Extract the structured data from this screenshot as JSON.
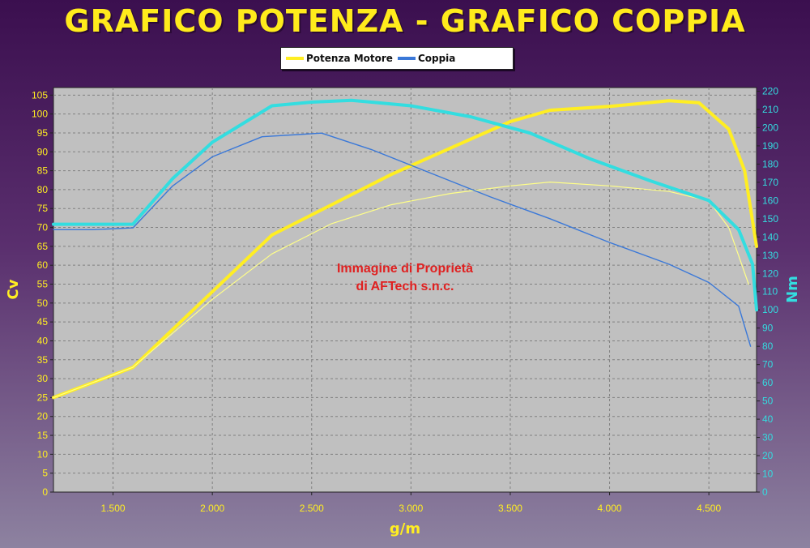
{
  "title": "GRAFICO POTENZA - GRAFICO COPPIA",
  "legend": {
    "items": [
      {
        "label": "Potenza Motore",
        "color": "#ffee22"
      },
      {
        "label": "Coppia",
        "color": "#3a78d8"
      }
    ]
  },
  "watermark": {
    "line1": "Immagine di Proprietà",
    "line2": "di AFTech s.n.c."
  },
  "colors": {
    "plot_bg": "#c0c0c0",
    "power": "#ffee22",
    "power_thin": "#ffff88",
    "torque_thick": "#33dde0",
    "torque_thin": "#3a78d8",
    "left_axis": "#ffee22",
    "right_axis": "#33dde0",
    "watermark": "#e02020"
  },
  "chart_data": {
    "type": "line",
    "xlabel": "g/m",
    "ylabel_left": "Cv",
    "ylabel_right": "Nm",
    "xlim": [
      1200,
      4740
    ],
    "ylim_left": [
      0,
      107
    ],
    "ylim_right": [
      0,
      222
    ],
    "x_ticks": [
      1500,
      2000,
      2500,
      3000,
      3500,
      4000,
      4500
    ],
    "x_tick_labels": [
      "1.500",
      "2.000",
      "2.500",
      "3.000",
      "3.500",
      "4.000",
      "4.500"
    ],
    "y_left_ticks": [
      0,
      5,
      10,
      15,
      20,
      25,
      30,
      35,
      40,
      45,
      50,
      55,
      60,
      65,
      70,
      75,
      80,
      85,
      90,
      95,
      100,
      105
    ],
    "y_right_ticks": [
      0,
      10,
      20,
      30,
      40,
      50,
      60,
      70,
      80,
      90,
      100,
      110,
      120,
      130,
      140,
      150,
      160,
      170,
      180,
      190,
      200,
      210,
      220
    ],
    "grid": true,
    "series": [
      {
        "name": "Potenza Motore",
        "axis": "left",
        "style": "thick",
        "x": [
          1200,
          1400,
          1600,
          1800,
          2000,
          2300,
          2600,
          2900,
          3200,
          3500,
          3700,
          4000,
          4300,
          4450,
          4600,
          4680,
          4740
        ],
        "y": [
          25,
          29,
          33,
          43,
          53,
          68,
          76,
          84,
          91,
          98,
          101,
          102,
          103.5,
          103,
          96,
          85,
          65
        ]
      },
      {
        "name": "",
        "axis": "left",
        "style": "thin",
        "x": [
          1200,
          1400,
          1600,
          1800,
          2000,
          2300,
          2600,
          2900,
          3200,
          3500,
          3700,
          4000,
          4300,
          4500,
          4600,
          4700
        ],
        "y": [
          25,
          29,
          33,
          42,
          51,
          63,
          71,
          76,
          79,
          81,
          82,
          81,
          79.5,
          77,
          70,
          55
        ]
      },
      {
        "name": "",
        "axis": "right",
        "style": "thick",
        "x": [
          1200,
          1400,
          1600,
          1800,
          2000,
          2300,
          2500,
          2700,
          3000,
          3300,
          3600,
          3900,
          4200,
          4500,
          4650,
          4720,
          4740
        ],
        "y": [
          147,
          147,
          147,
          172,
          192,
          212,
          214,
          215,
          212,
          206,
          197,
          183,
          171,
          160,
          144,
          125,
          100
        ]
      },
      {
        "name": "Coppia",
        "axis": "right",
        "style": "thin",
        "x": [
          1200,
          1400,
          1600,
          1800,
          2000,
          2250,
          2550,
          2800,
          3100,
          3400,
          3700,
          4000,
          4300,
          4500,
          4650,
          4710
        ],
        "y": [
          144,
          144,
          145,
          168,
          184,
          195,
          197,
          188,
          175,
          162,
          150,
          137,
          125,
          115,
          102,
          80
        ]
      }
    ]
  }
}
